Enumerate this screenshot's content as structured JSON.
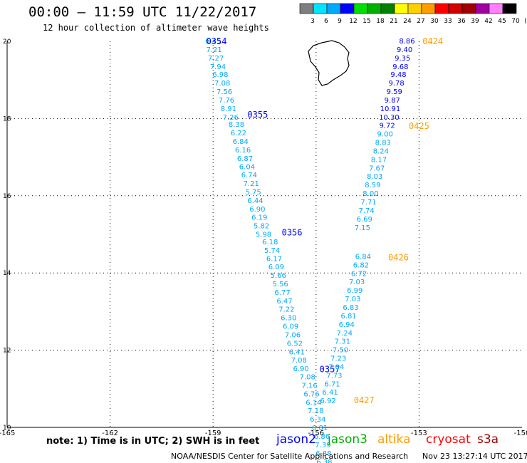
{
  "header": {
    "title": "00:00 – 11:59 UTC 11/22/2017",
    "subtitle": "12 hour collection of altimeter wave heights"
  },
  "colorbar": {
    "labels": [
      "3",
      "6",
      "9",
      "12",
      "15",
      "18",
      "21",
      "24",
      "27",
      "30",
      "33",
      "36",
      "39",
      "42",
      "45",
      "70",
      "(ft)"
    ],
    "colors": [
      "#7f7f7f",
      "#00e5ff",
      "#00a8ff",
      "#0000ff",
      "#00e000",
      "#00b000",
      "#008000",
      "#ffff00",
      "#ffd000",
      "#ff9c00",
      "#ff0000",
      "#d00000",
      "#a00000",
      "#a000a0",
      "#ff80ff",
      "#000000"
    ]
  },
  "axes": {
    "x_ticks": [
      "-165",
      "-162",
      "-159",
      "-156",
      "-153",
      "-150"
    ],
    "y_ticks": [
      "20",
      "18",
      "16",
      "14",
      "12",
      "10"
    ]
  },
  "passes": [
    {
      "id": "0354",
      "color": "#0000ff",
      "value_color": "#00a8ff",
      "label_lat": 20.0,
      "label_lon": -158.9,
      "points": [
        {
          "lat": 20.0,
          "lon": -159.0,
          "v": "6.45"
        },
        {
          "lat": 19.78,
          "lon": -158.97,
          "v": "7.21"
        },
        {
          "lat": 19.56,
          "lon": -158.92,
          "v": "7.27"
        },
        {
          "lat": 19.34,
          "lon": -158.86,
          "v": "7.94"
        },
        {
          "lat": 19.13,
          "lon": -158.79,
          "v": "6.98"
        },
        {
          "lat": 18.91,
          "lon": -158.73,
          "v": "7.08"
        },
        {
          "lat": 18.69,
          "lon": -158.67,
          "v": "7.56"
        },
        {
          "lat": 18.47,
          "lon": -158.61,
          "v": "7.76"
        },
        {
          "lat": 18.25,
          "lon": -158.55,
          "v": "8.91"
        },
        {
          "lat": 18.03,
          "lon": -158.49,
          "v": "7.26"
        }
      ]
    },
    {
      "id": "0355",
      "color": "#0000ff",
      "value_color": "#00a8ff",
      "label_lat": 18.1,
      "label_lon": -157.7,
      "points": [
        {
          "lat": 17.84,
          "lon": -158.32,
          "v": "8.38"
        },
        {
          "lat": 17.62,
          "lon": -158.26,
          "v": "6.22"
        },
        {
          "lat": 17.4,
          "lon": -158.2,
          "v": "6.84"
        },
        {
          "lat": 17.18,
          "lon": -158.13,
          "v": "6.16"
        },
        {
          "lat": 16.96,
          "lon": -158.07,
          "v": "6.87"
        },
        {
          "lat": 16.74,
          "lon": -158.01,
          "v": "6.04"
        },
        {
          "lat": 16.53,
          "lon": -157.95,
          "v": "6.74"
        },
        {
          "lat": 16.31,
          "lon": -157.89,
          "v": "7.21"
        },
        {
          "lat": 16.09,
          "lon": -157.83,
          "v": "5.75"
        },
        {
          "lat": 15.87,
          "lon": -157.77,
          "v": "6.44"
        },
        {
          "lat": 15.65,
          "lon": -157.71,
          "v": "6.90"
        },
        {
          "lat": 15.43,
          "lon": -157.65,
          "v": "6.19"
        },
        {
          "lat": 15.21,
          "lon": -157.59,
          "v": "5.82"
        },
        {
          "lat": 14.99,
          "lon": -157.53,
          "v": "5.98"
        }
      ]
    },
    {
      "id": "0356",
      "color": "#0000ff",
      "value_color": "#00a8ff",
      "label_lat": 15.05,
      "label_lon": -156.7,
      "points": [
        {
          "lat": 14.8,
          "lon": -157.34,
          "v": "6.18"
        },
        {
          "lat": 14.58,
          "lon": -157.28,
          "v": "5.74"
        },
        {
          "lat": 14.36,
          "lon": -157.22,
          "v": "6.17"
        },
        {
          "lat": 14.15,
          "lon": -157.16,
          "v": "6.09"
        },
        {
          "lat": 13.93,
          "lon": -157.1,
          "v": "5.66"
        },
        {
          "lat": 13.71,
          "lon": -157.04,
          "v": "5.56"
        },
        {
          "lat": 13.49,
          "lon": -156.98,
          "v": "6.77"
        },
        {
          "lat": 13.27,
          "lon": -156.92,
          "v": "6.47"
        },
        {
          "lat": 13.05,
          "lon": -156.86,
          "v": "7.22"
        },
        {
          "lat": 12.83,
          "lon": -156.8,
          "v": "6.30"
        },
        {
          "lat": 12.61,
          "lon": -156.74,
          "v": "6.09"
        },
        {
          "lat": 12.39,
          "lon": -156.68,
          "v": "7.06"
        },
        {
          "lat": 12.17,
          "lon": -156.62,
          "v": "6.52"
        },
        {
          "lat": 11.95,
          "lon": -156.56,
          "v": "6.41"
        },
        {
          "lat": 11.73,
          "lon": -156.5,
          "v": "7.08"
        },
        {
          "lat": 11.51,
          "lon": -156.44,
          "v": "6.90"
        }
      ]
    },
    {
      "id": "0357",
      "color": "#0000ff",
      "value_color": "#00a8ff",
      "label_lat": 11.5,
      "label_lon": -155.6,
      "points": [
        {
          "lat": 11.3,
          "lon": -156.25,
          "v": "7.08"
        },
        {
          "lat": 11.08,
          "lon": -156.19,
          "v": "7.16"
        },
        {
          "lat": 10.86,
          "lon": -156.13,
          "v": "6.76"
        },
        {
          "lat": 10.64,
          "lon": -156.07,
          "v": "6.14"
        },
        {
          "lat": 10.42,
          "lon": -156.01,
          "v": "7.18"
        },
        {
          "lat": 10.2,
          "lon": -155.95,
          "v": "6.34"
        },
        {
          "lat": 9.98,
          "lon": -155.89,
          "v": "6.81"
        },
        {
          "lat": 9.76,
          "lon": -155.83,
          "v": "6.86"
        },
        {
          "lat": 9.54,
          "lon": -155.8,
          "v": "7.39"
        },
        {
          "lat": 9.32,
          "lon": -155.78,
          "v": "6.88"
        },
        {
          "lat": 9.1,
          "lon": -155.76,
          "v": "6.38"
        }
      ]
    },
    {
      "id": "0424",
      "color": "#ff9c00",
      "value_color": "#0000ff",
      "label_lat": 20.0,
      "label_lon": -152.6,
      "points": [
        {
          "lat": 20.0,
          "lon": -153.35,
          "v": "8.86"
        },
        {
          "lat": 19.78,
          "lon": -153.42,
          "v": "9.40"
        },
        {
          "lat": 19.56,
          "lon": -153.48,
          "v": "9.35"
        },
        {
          "lat": 19.34,
          "lon": -153.54,
          "v": "9.68"
        },
        {
          "lat": 19.13,
          "lon": -153.6,
          "v": "9.48"
        },
        {
          "lat": 18.91,
          "lon": -153.66,
          "v": "9.78"
        },
        {
          "lat": 18.69,
          "lon": -153.72,
          "v": "9.59"
        },
        {
          "lat": 18.47,
          "lon": -153.78,
          "v": "9.87"
        },
        {
          "lat": 18.25,
          "lon": -153.84,
          "v": "10.91"
        }
      ]
    },
    {
      "id": "0425",
      "color": "#ff9c00",
      "value_color": "#00a8ff",
      "label_lat": 17.8,
      "label_lon": -153.0,
      "points": [
        {
          "lat": 18.03,
          "lon": -153.87,
          "v": "10.30",
          "c": "#0000ff"
        },
        {
          "lat": 17.81,
          "lon": -153.93,
          "v": "9.72",
          "c": "#0000ff"
        },
        {
          "lat": 17.59,
          "lon": -153.99,
          "v": "9.00"
        },
        {
          "lat": 17.37,
          "lon": -154.05,
          "v": "8.83"
        },
        {
          "lat": 17.15,
          "lon": -154.11,
          "v": "8.24"
        },
        {
          "lat": 16.93,
          "lon": -154.17,
          "v": "8.17"
        },
        {
          "lat": 16.71,
          "lon": -154.23,
          "v": "7.67"
        },
        {
          "lat": 16.49,
          "lon": -154.29,
          "v": "8.03"
        },
        {
          "lat": 16.27,
          "lon": -154.35,
          "v": "8.59"
        },
        {
          "lat": 16.05,
          "lon": -154.41,
          "v": "8.00"
        },
        {
          "lat": 15.83,
          "lon": -154.47,
          "v": "7.71"
        },
        {
          "lat": 15.61,
          "lon": -154.53,
          "v": "7.74"
        },
        {
          "lat": 15.39,
          "lon": -154.59,
          "v": "6.69"
        },
        {
          "lat": 15.17,
          "lon": -154.65,
          "v": "7.15"
        }
      ]
    },
    {
      "id": "0426",
      "color": "#ff9c00",
      "value_color": "#00a8ff",
      "label_lat": 14.4,
      "label_lon": -153.6,
      "points": [
        {
          "lat": 14.42,
          "lon": -154.63,
          "v": "6.84"
        },
        {
          "lat": 14.2,
          "lon": -154.69,
          "v": "6.82"
        },
        {
          "lat": 13.98,
          "lon": -154.75,
          "v": "6.72"
        },
        {
          "lat": 13.76,
          "lon": -154.81,
          "v": "7.03"
        },
        {
          "lat": 13.54,
          "lon": -154.87,
          "v": "6.99"
        },
        {
          "lat": 13.32,
          "lon": -154.93,
          "v": "7.03"
        },
        {
          "lat": 13.1,
          "lon": -154.99,
          "v": "6.83"
        },
        {
          "lat": 12.88,
          "lon": -155.05,
          "v": "6.81"
        },
        {
          "lat": 12.66,
          "lon": -155.11,
          "v": "6.94"
        },
        {
          "lat": 12.44,
          "lon": -155.17,
          "v": "7.24"
        },
        {
          "lat": 12.22,
          "lon": -155.23,
          "v": "7.31"
        },
        {
          "lat": 12.0,
          "lon": -155.29,
          "v": "7.50"
        },
        {
          "lat": 11.78,
          "lon": -155.35,
          "v": "7.23"
        },
        {
          "lat": 11.56,
          "lon": -155.41,
          "v": "7.04"
        },
        {
          "lat": 11.34,
          "lon": -155.47,
          "v": "7.73"
        },
        {
          "lat": 11.12,
          "lon": -155.53,
          "v": "6.71"
        },
        {
          "lat": 10.9,
          "lon": -155.59,
          "v": "6.41"
        },
        {
          "lat": 10.68,
          "lon": -155.65,
          "v": "6.92"
        }
      ]
    },
    {
      "id": "0427",
      "color": "#ff9c00",
      "value_color": "#00a8ff",
      "label_lat": 10.7,
      "label_lon": -154.6,
      "points": []
    }
  ],
  "legend": {
    "note": "note: 1) Time is in UTC; 2) SWH is in feet",
    "satellites": [
      {
        "name": "jason2",
        "color": "#0000ff"
      },
      {
        "name": "jason3",
        "color": "#00b000"
      },
      {
        "name": "altika",
        "color": "#ff9c00"
      },
      {
        "name": "cryosat",
        "color": "#ff0000"
      },
      {
        "name": "s3a",
        "color": "#a00000"
      }
    ]
  },
  "footer": {
    "credit": "NOAA/NESDIS Center for Satellite Applications and Research",
    "timestamp": "Nov 23 13:27:14 UTC 2017"
  }
}
